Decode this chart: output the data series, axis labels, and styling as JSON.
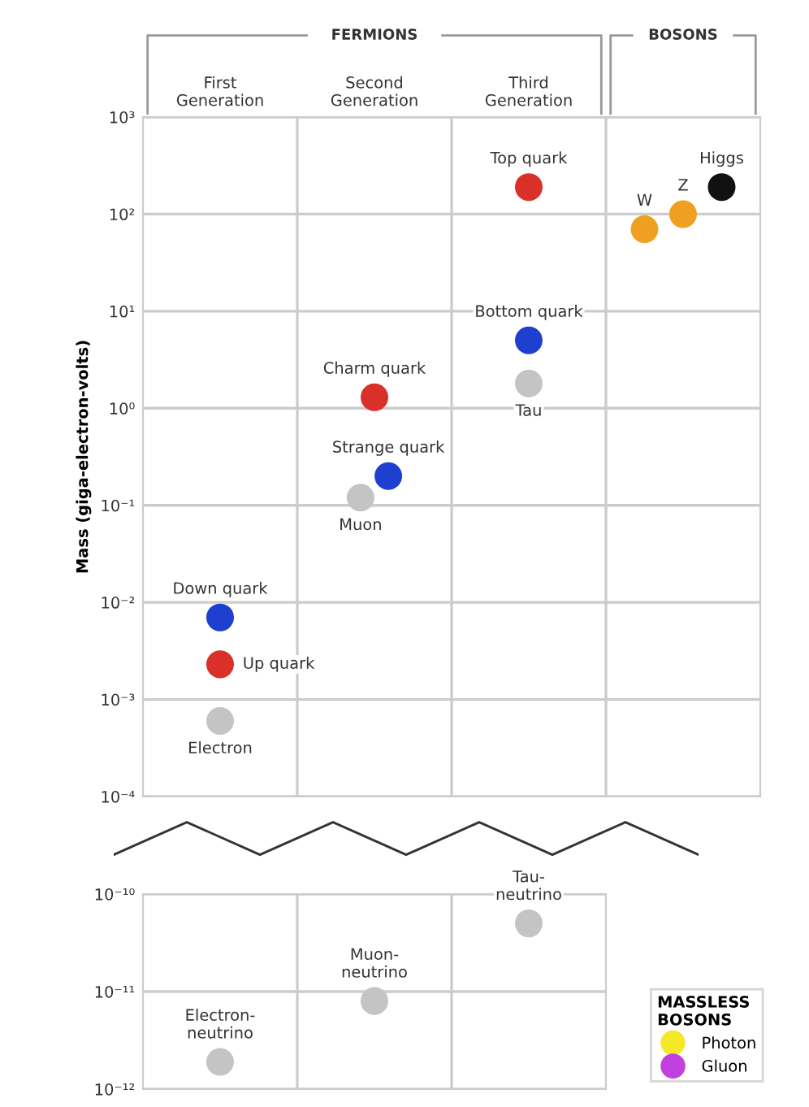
{
  "chart_data": [
    {
      "type": "scatter",
      "categories": [
        "First\nGeneration",
        "Second\nGeneration",
        "Third\nGeneration",
        null
      ],
      "ylabel": "Mass (giga-electron-volts)",
      "log": "y",
      "ylim": [
        0.0001,
        1000
      ],
      "yticks": [
        {
          "value": 0.0001,
          "label": "10⁻⁴"
        },
        {
          "value": 0.001,
          "label": "10⁻³"
        },
        {
          "value": 0.01,
          "label": "10⁻²"
        },
        {
          "value": 0.1,
          "label": "10⁻¹"
        },
        {
          "value": 1,
          "label": "10⁰"
        },
        {
          "value": 10,
          "label": "10¹"
        },
        {
          "value": 100,
          "label": "10²"
        },
        {
          "value": 1000,
          "label": "10³"
        }
      ],
      "grid": true,
      "marker": "circle",
      "annotations": [
        "FERMIONS",
        "BOSONS"
      ],
      "series": [
        {
          "name": "Down quark",
          "color": "#1f3fd0",
          "values": [
            0.007,
            null,
            null,
            null
          ]
        },
        {
          "name": "Up quark",
          "color": "#d9302a",
          "values": [
            0.0023,
            null,
            null,
            null
          ]
        },
        {
          "name": "Electron",
          "color": "#c4c4c4",
          "values": [
            0.0006,
            null,
            null,
            null
          ]
        },
        {
          "name": "Charm quark",
          "color": "#d9302a",
          "values": [
            null,
            1.3,
            null,
            null
          ]
        },
        {
          "name": "Strange quark",
          "color": "#1f3fd0",
          "values": [
            null,
            0.2,
            null,
            null
          ]
        },
        {
          "name": "Muon",
          "color": "#c4c4c4",
          "values": [
            null,
            0.12,
            null,
            null
          ]
        },
        {
          "name": "Top quark",
          "color": "#d9302a",
          "values": [
            null,
            null,
            190,
            null
          ]
        },
        {
          "name": "Bottom quark",
          "color": "#1f3fd0",
          "values": [
            null,
            null,
            5,
            null
          ]
        },
        {
          "name": "Tau",
          "color": "#c4c4c4",
          "values": [
            null,
            null,
            1.8,
            null
          ]
        },
        {
          "name": "W",
          "color": "#f0a020",
          "values": [
            null,
            null,
            null,
            70
          ]
        },
        {
          "name": "Z",
          "color": "#f0a020",
          "values": [
            null,
            null,
            null,
            100
          ]
        },
        {
          "name": "Higgs",
          "color": "#111111",
          "values": [
            null,
            null,
            null,
            190
          ]
        }
      ]
    },
    {
      "type": "scatter",
      "categories": [
        null,
        null,
        null
      ],
      "log": "y",
      "ylim": [
        1e-12,
        1e-10
      ],
      "yticks": [
        {
          "value": 1e-12,
          "label": "10⁻¹²"
        },
        {
          "value": 1e-11,
          "label": "10⁻¹¹"
        },
        {
          "value": 1e-10,
          "label": "10⁻¹⁰"
        }
      ],
      "grid": true,
      "marker": "circle",
      "tick_labels": "y",
      "legend": "right",
      "legend_title": "MASSLESS\nBOSONS",
      "series": [
        {
          "name": "Electron-\nneutrino",
          "color": "#c4c4c4",
          "values": [
            1.9e-12,
            null,
            null
          ]
        },
        {
          "name": "Muon-\nneutrino",
          "color": "#c4c4c4",
          "values": [
            null,
            8e-12,
            null
          ]
        },
        {
          "name": "Tau-\nneutrino",
          "color": "#c4c4c4",
          "values": [
            null,
            null,
            5e-11
          ]
        },
        {
          "name": "Photon",
          "color": "#f5e829",
          "values": [
            null,
            null,
            null
          ]
        },
        {
          "name": "Gluon",
          "color": "#c040e0",
          "values": [
            null,
            null,
            null
          ]
        }
      ]
    }
  ]
}
